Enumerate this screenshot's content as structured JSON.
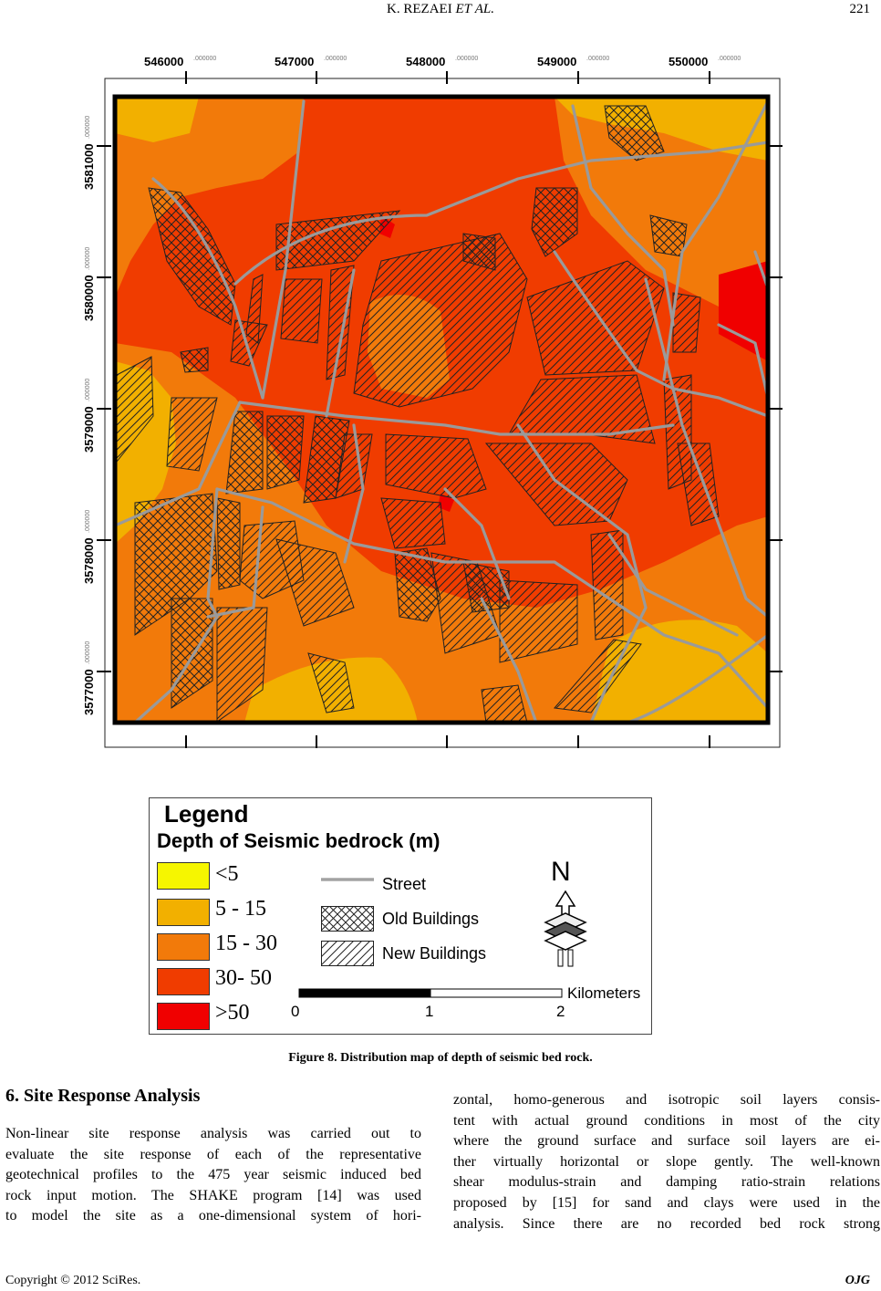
{
  "header": {
    "authors_prefix": "K. REZAEI",
    "authors_et": "ET",
    "authors_al": "AL.",
    "page_number": "221"
  },
  "map": {
    "x_ticks": [
      "546000",
      "547000",
      "548000",
      "549000",
      "550000"
    ],
    "x_decimals": ".000000",
    "y_ticks": [
      "3581000",
      "3580000",
      "3579000",
      "3578000",
      "3577000"
    ],
    "colors": {
      "lt5": "#f6f600",
      "5_15": "#f2b000",
      "15_30": "#f27a0a",
      "30_50": "#f03c00",
      "gt50": "#f00000",
      "street": "#9a9a9a"
    }
  },
  "legend": {
    "title": "Legend",
    "subtitle": "Depth of Seismic bedrock (m)",
    "classes": [
      {
        "label": "<5",
        "color": "#f6f600"
      },
      {
        "label": "5 - 15",
        "color": "#f2b000"
      },
      {
        "label": "15 - 30",
        "color": "#f27a0a"
      },
      {
        "label": "30- 50",
        "color": "#f03c00"
      },
      {
        "label": ">50",
        "color": "#f00000"
      }
    ],
    "street_label": "Street",
    "old_buildings_label": "Old Buildings",
    "new_buildings_label": "New Buildings",
    "north_label": "N",
    "scale_unit": "Kilometers",
    "scale_ticks": [
      "0",
      "1",
      "2"
    ]
  },
  "caption": "Figure 8. Distribution map of depth of seismic bed rock.",
  "section_heading": "6. Site Response Analysis",
  "left_column_lines": [
    "Non-linear site response analysis was carried out to",
    "evaluate the site response of each of the representative",
    "geotechnical profiles to the 475 year seismic induced bed",
    "rock input motion. The SHAKE program [14] was used",
    "to model the site as a one-dimensional system of hori-"
  ],
  "right_column_lines": [
    "zontal, homo-generous and isotropic soil layers consis-",
    "tent with actual ground conditions in most of the city",
    "where the ground surface and surface soil layers are ei-",
    "ther virtually horizontal or slope gently. The well-known",
    "shear modulus-strain and damping ratio-strain relations",
    "proposed by [15] for sand and clays were used in the",
    "analysis. Since there are no recorded bed rock strong"
  ],
  "footer": {
    "copyright": "Copyright © 2012 SciRes.",
    "journal": "OJG"
  }
}
